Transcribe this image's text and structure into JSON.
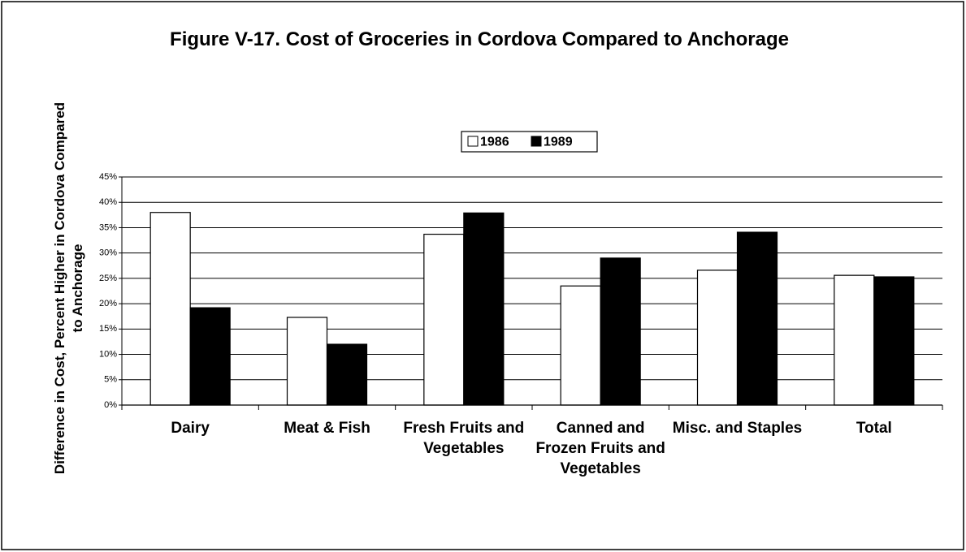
{
  "chart_data": {
    "type": "bar",
    "title": "Figure V-17.  Cost of Groceries in Cordova Compared to Anchorage",
    "ylabel": "Difference in Cost, Percent Higher in Cordova Compared to Anchorage",
    "categories": [
      "Dairy",
      "Meat & Fish",
      "Fresh Fruits and Vegetables",
      "Canned and Frozen Fruits and Vegetables",
      "Misc. and Staples",
      "Total"
    ],
    "series": [
      {
        "name": "1986",
        "color": "#ffffff",
        "values": [
          38,
          17.3,
          33.7,
          23.5,
          26.6,
          25.6
        ]
      },
      {
        "name": "1989",
        "color": "#000000",
        "values": [
          19.2,
          12,
          37.9,
          29,
          34.1,
          25.3
        ]
      }
    ],
    "ylim": [
      0,
      45
    ],
    "yticks": [
      {
        "value": 0,
        "label": "0%"
      },
      {
        "value": 5,
        "label": "5%"
      },
      {
        "value": 10,
        "label": "10%"
      },
      {
        "value": 15,
        "label": "15%"
      },
      {
        "value": 20,
        "label": "20%"
      },
      {
        "value": 25,
        "label": "25%"
      },
      {
        "value": 30,
        "label": "30%"
      },
      {
        "value": 35,
        "label": "35%"
      },
      {
        "value": 40,
        "label": "40%"
      },
      {
        "value": 45,
        "label": "45%"
      }
    ],
    "grid": true,
    "legend": "top"
  }
}
